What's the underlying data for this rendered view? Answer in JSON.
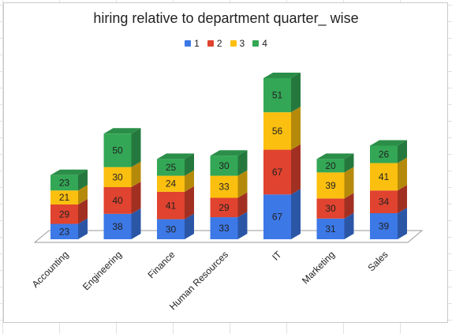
{
  "chart_data": {
    "type": "bar",
    "stacked": true,
    "three_d": true,
    "title": "hiring relative to department quarter_ wise",
    "categories": [
      "Accounting",
      "Engineering",
      "Finance",
      "Human Resources",
      "IT",
      "Marketing",
      "Sales"
    ],
    "series": [
      {
        "name": "1",
        "color": "#3c78e6",
        "values": [
          23,
          38,
          30,
          33,
          67,
          31,
          39
        ]
      },
      {
        "name": "2",
        "color": "#e0432f",
        "values": [
          29,
          40,
          41,
          29,
          67,
          30,
          34
        ]
      },
      {
        "name": "3",
        "color": "#fbbf0f",
        "values": [
          21,
          30,
          24,
          33,
          56,
          39,
          41
        ]
      },
      {
        "name": "4",
        "color": "#33a755",
        "values": [
          23,
          50,
          25,
          30,
          51,
          20,
          26
        ]
      }
    ],
    "legend_position": "top-center",
    "value_labels": true
  }
}
